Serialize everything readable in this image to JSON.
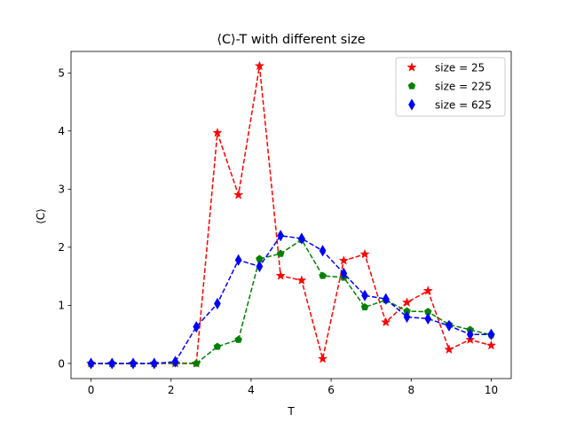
{
  "chart_data": {
    "type": "line",
    "title": "⟨C⟩-T with different size",
    "xlabel": "T",
    "ylabel": "⟨C⟩",
    "xlim": [
      -0.5,
      10.5
    ],
    "ylim": [
      -0.26,
      5.37
    ],
    "xticks": [
      0,
      2,
      4,
      6,
      8,
      10
    ],
    "xtick_labels": [
      "0",
      "2",
      "4",
      "6",
      "8",
      "10"
    ],
    "yticks": [
      0,
      1,
      2,
      3,
      4,
      5
    ],
    "ytick_labels": [
      "0",
      "1",
      "2",
      "3",
      "4",
      "5"
    ],
    "grid": false,
    "legend_position": "top-right",
    "x": [
      0.0,
      0.526,
      1.053,
      1.579,
      2.105,
      2.632,
      3.158,
      3.684,
      4.211,
      4.737,
      5.263,
      5.789,
      6.316,
      6.842,
      7.368,
      7.895,
      8.421,
      8.947,
      9.474,
      10.0
    ],
    "series": [
      {
        "name": "size = 25",
        "color": "#ff0000",
        "marker": "star",
        "linestyle": "dashed",
        "values": [
          0.0,
          0.0,
          0.0,
          0.0,
          0.0,
          0.0,
          3.97,
          2.9,
          5.12,
          1.51,
          1.43,
          0.08,
          1.77,
          1.88,
          0.71,
          1.05,
          1.25,
          0.24,
          0.41,
          0.31
        ]
      },
      {
        "name": "size = 225",
        "color": "#008000",
        "marker": "pentagon",
        "linestyle": "dashed",
        "values": [
          0.0,
          0.0,
          0.0,
          0.0,
          0.01,
          0.0,
          0.29,
          0.41,
          1.8,
          1.89,
          2.13,
          1.51,
          1.48,
          0.97,
          1.09,
          0.9,
          0.89,
          0.67,
          0.58,
          0.49
        ]
      },
      {
        "name": "size = 625",
        "color": "#0000ff",
        "marker": "thin_diamond",
        "linestyle": "dashed",
        "values": [
          0.0,
          0.0,
          0.0,
          0.0,
          0.03,
          0.63,
          1.03,
          1.78,
          1.67,
          2.2,
          2.15,
          1.94,
          1.55,
          1.17,
          1.11,
          0.8,
          0.77,
          0.65,
          0.5,
          0.5
        ]
      }
    ]
  }
}
